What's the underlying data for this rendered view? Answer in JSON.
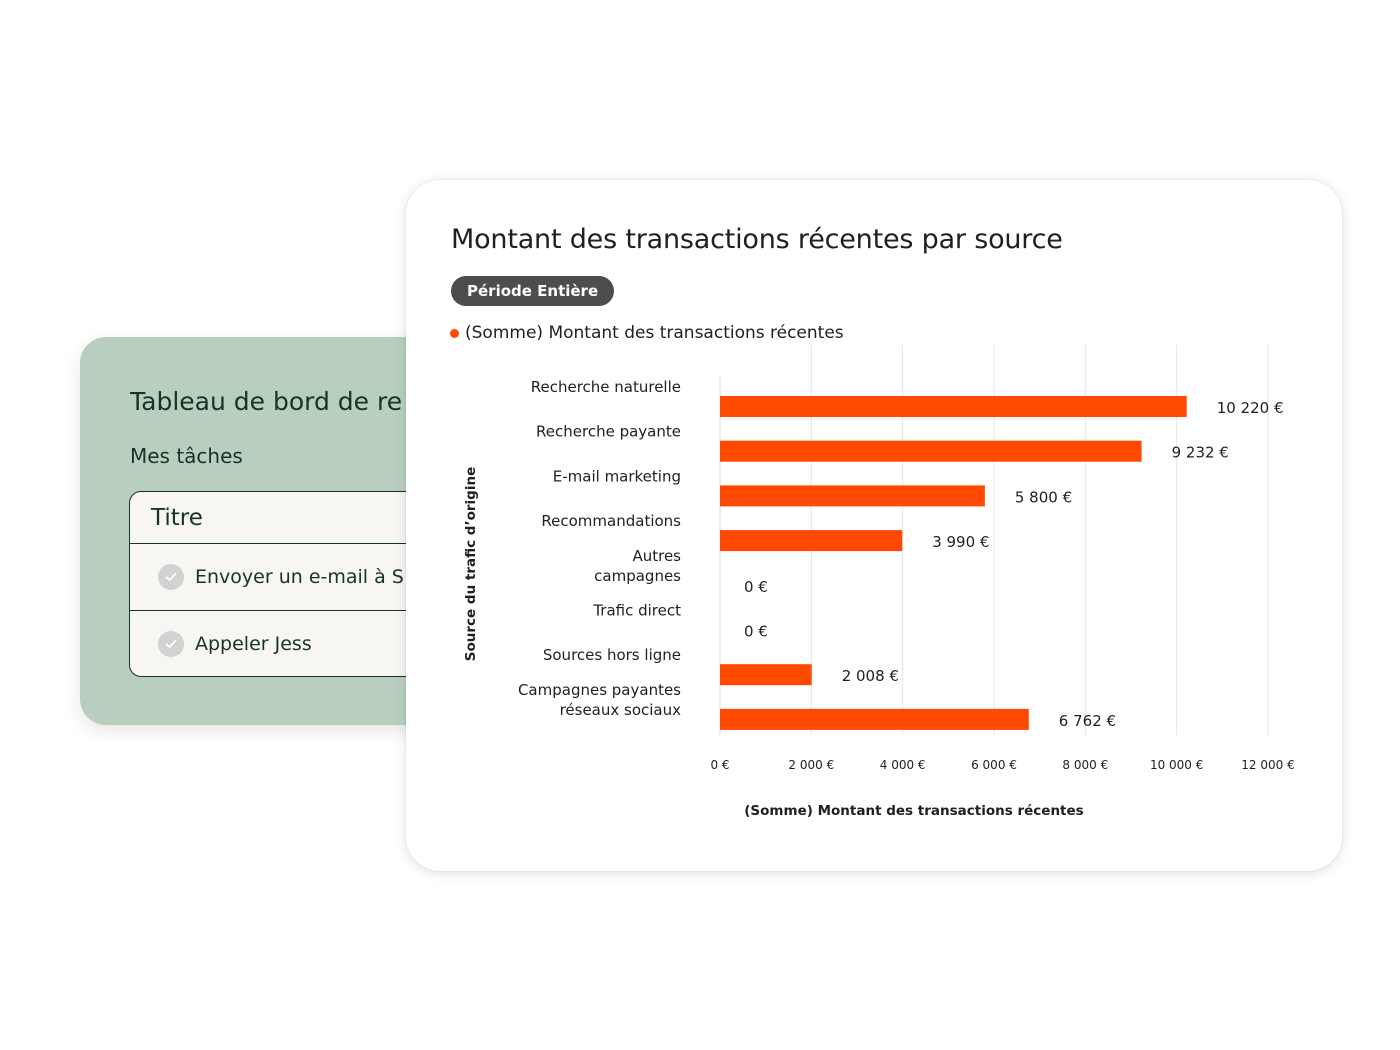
{
  "task_card": {
    "title": "Tableau de bord de re",
    "subtitle": "Mes tâches",
    "table_header": "Titre",
    "tasks": [
      "Envoyer un e-mail à S",
      "Appeler Jess"
    ]
  },
  "chart_card": {
    "period_badge": "Période Entière"
  },
  "colors": {
    "bar": "#ff4800",
    "task_card_bg": "#b8cfc0",
    "badge_bg": "#4d4d4d"
  },
  "chart_data": {
    "type": "bar",
    "orientation": "horizontal",
    "title": "Montant des transactions récentes par source",
    "legend": "(Somme) Montant des transactions récentes",
    "legend_placement": "top-left",
    "xlabel": "(Somme) Montant des transactions récentes",
    "ylabel": "Source du trafic d’origine",
    "categories": [
      "Recherche naturelle",
      "Recherche payante",
      "E-mail marketing",
      "Recommandations",
      "Autres campagnes",
      "Trafic direct",
      "Sources hors ligne",
      "Campagnes payantes réseaux sociaux"
    ],
    "category_lines": [
      [
        "Recherche naturelle"
      ],
      [
        "Recherche payante"
      ],
      [
        "E-mail marketing"
      ],
      [
        "Recommandations"
      ],
      [
        "Autres",
        "campagnes"
      ],
      [
        "Trafic direct"
      ],
      [
        "Sources hors ligne"
      ],
      [
        "Campagnes payantes",
        "réseaux sociaux"
      ]
    ],
    "series": [
      {
        "name": "(Somme) Montant des transactions récentes",
        "values": [
          10220,
          9232,
          5800,
          3990,
          0,
          0,
          2008,
          6762
        ]
      }
    ],
    "data_labels": [
      "10 220 €",
      "9 232 €",
      "5 800 €",
      "3 990 €",
      "0 €",
      "0 €",
      "2 008 €",
      "6 762 €"
    ],
    "xticks": [
      0,
      2000,
      4000,
      6000,
      8000,
      10000,
      12000
    ],
    "xtick_labels": [
      "0 €",
      "2 000 €",
      "4 000 €",
      "6 000 €",
      "8 000 €",
      "10 000 €",
      "12 000 €"
    ],
    "xlim": [
      0,
      12000
    ],
    "grid": true
  }
}
